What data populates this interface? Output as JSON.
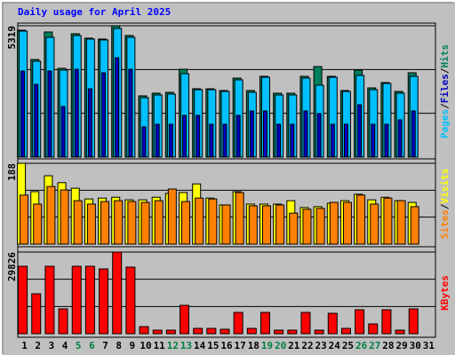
{
  "separator": "/",
  "chart_data": [
    {
      "type": "bar",
      "title": "Daily usage for April 2025",
      "ylim": [
        0,
        5319
      ],
      "yticks": [
        5319
      ],
      "grid": true,
      "series": [
        {
          "name": "Hits",
          "color": "#00805c",
          "values": [
            5139,
            3953,
            5067,
            3594,
            4996,
            4816,
            4780,
            5319,
            4924,
            2480,
            2588,
            2624,
            3558,
            2767,
            2767,
            2695,
            3199,
            2695,
            3270,
            2588,
            2588,
            3270,
            3666,
            3270,
            2695,
            3522,
            2803,
            3019,
            2659,
            3414,
            null
          ]
        },
        {
          "name": "Pages",
          "color": "#00c0ff",
          "values": [
            5103,
            3881,
            4852,
            3522,
            4924,
            4780,
            4744,
            5211,
            4852,
            2408,
            2516,
            2552,
            3378,
            2731,
            2731,
            2659,
            3127,
            2624,
            3235,
            2516,
            2516,
            3199,
            2911,
            3235,
            2659,
            3306,
            2731,
            2983,
            2588,
            3270,
            null
          ]
        },
        {
          "name": "Files",
          "color": "#0000c0",
          "values": [
            3486,
            2947,
            3486,
            2049,
            3558,
            2767,
            3414,
            4025,
            3558,
            1222,
            1330,
            1330,
            1689,
            1689,
            1330,
            1330,
            1689,
            1869,
            1869,
            1330,
            1330,
            1869,
            1761,
            1330,
            1330,
            2120,
            1330,
            1330,
            1509,
            1869,
            null
          ]
        }
      ]
    },
    {
      "type": "bar",
      "ylim": [
        0,
        188
      ],
      "yticks": [
        188
      ],
      "grid": true,
      "series": [
        {
          "name": "Visits",
          "color": "#ffff00",
          "values": [
            188,
            122,
            159,
            143,
            130,
            105,
            107,
            109,
            103,
            103,
            109,
            118,
            120,
            140,
            107,
            91,
            122,
            93,
            93,
            93,
            101,
            85,
            87,
            95,
            101,
            116,
            103,
            109,
            101,
            97,
            null
          ]
        },
        {
          "name": "Sites",
          "color": "#ff8000",
          "values": [
            114,
            93,
            134,
            126,
            101,
            93,
            99,
            101,
            99,
            97,
            101,
            128,
            99,
            107,
            105,
            91,
            120,
            89,
            89,
            91,
            72,
            81,
            83,
            97,
            97,
            114,
            93,
            107,
            101,
            87,
            null
          ]
        }
      ]
    },
    {
      "type": "bar",
      "ylim": [
        0,
        29826
      ],
      "yticks": [
        29826
      ],
      "grid": true,
      "categories": [
        "1",
        "2",
        "3",
        "4",
        "5",
        "6",
        "7",
        "8",
        "9",
        "10",
        "11",
        "12",
        "13",
        "14",
        "15",
        "16",
        "17",
        "18",
        "19",
        "20",
        "21",
        "22",
        "23",
        "24",
        "25",
        "26",
        "27",
        "28",
        "29",
        "30",
        "31"
      ],
      "category_colors": [
        "#000000",
        "#000000",
        "#000000",
        "#000000",
        "#008040",
        "#008040",
        "#000000",
        "#000000",
        "#000000",
        "#000000",
        "#000000",
        "#008040",
        "#008040",
        "#000000",
        "#000000",
        "#000000",
        "#000000",
        "#000000",
        "#008040",
        "#008040",
        "#000000",
        "#000000",
        "#000000",
        "#000000",
        "#000000",
        "#008040",
        "#008040",
        "#000000",
        "#000000",
        "#000000",
        "#000000"
      ],
      "series": [
        {
          "name": "KBytes",
          "color": "#ff0000",
          "values": [
            24639,
            14589,
            24639,
            9077,
            24639,
            24639,
            23666,
            29826,
            24315,
            2594,
            1297,
            1297,
            10374,
            1945,
            1945,
            1621,
            7781,
            1945,
            7781,
            1297,
            1297,
            7781,
            1297,
            7456,
            1945,
            8753,
            3566,
            8753,
            1297,
            9077,
            null
          ]
        }
      ]
    }
  ]
}
